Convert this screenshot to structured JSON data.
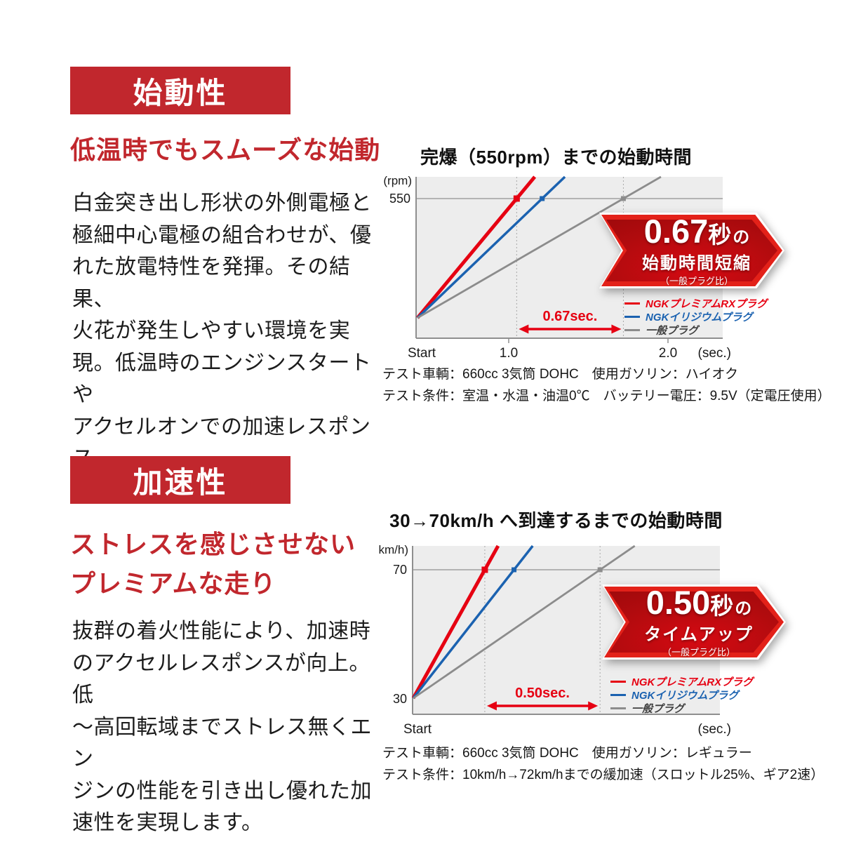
{
  "colors": {
    "brand_red": "#c1272d",
    "accent_red": "#e60012",
    "iridium_blue": "#1b62b0",
    "standard_gray": "#8c8c8c",
    "plot_background": "#ededed"
  },
  "sections": [
    {
      "badge": "始動性",
      "heading": "低温時でもスムーズな始動",
      "body": "白金突き出し形状の外側電極と\n極細中心電極の組合わせが、優\nれた放電特性を発揮。その結果、\n火花が発生しやすい環境を実\n現。低温時のエンジンスタートや\nアクセルオンでの加速レスポンス\nが向上します。",
      "callout": {
        "value": "0.67",
        "suffix_large": "秒",
        "suffix_small": "の",
        "line2": "始動時間短縮",
        "line3": "（一般プラグ比）"
      },
      "test_conditions": "テスト車輌：660cc 3気筒 DOHC　使用ガソリン：ハイオク\nテスト条件：室温・水温・油温0℃　バッテリー電圧：9.5V（定電圧使用）"
    },
    {
      "badge": "加速性",
      "heading": "ストレスを感じさせない\nプレミアムな走り",
      "body": "抜群の着火性能により、加速時\nのアクセルレスポンスが向上。低\n～高回転域までストレス無くエン\nジンの性能を引き出し優れた加\n速性を実現します。",
      "callout": {
        "value": "0.50",
        "suffix_large": "秒",
        "suffix_small": "の",
        "line2": "タイムアップ",
        "line3": "（一般プラグ比）"
      },
      "test_conditions": "テスト車輌：660cc 3気筒 DOHC　使用ガソリン：レギュラー\nテスト条件：10km/h→72km/hまでの緩加速（スロットル25%、ギア2速）"
    }
  ],
  "chart_data": [
    {
      "type": "line",
      "title": "完爆（550rpm）までの始動時間",
      "x_axis": {
        "start_label": "Start",
        "unit_label": "(sec.)",
        "ticks": [
          1.0,
          2.0
        ],
        "tick_labels": [
          "1.0",
          "2.0"
        ],
        "x_unit": "seconds"
      },
      "y_axis": {
        "unit_label": "(rpm)",
        "target_label": "550",
        "target_value": 550,
        "start_label": ""
      },
      "series": [
        {
          "name": "NGKプレミアムRXプラグ",
          "color": "#e60012",
          "label_color": "#e60012",
          "t_cross": 1.05
        },
        {
          "name": "NGKイリジウムプラグ",
          "color": "#1b62b0",
          "label_color": "#1b62b0",
          "t_cross": 1.21
        },
        {
          "name": "一般プラグ",
          "color": "#8c8c8c",
          "label_color": "#3f3f3f",
          "t_cross": 1.72
        }
      ],
      "annotation": {
        "label": "0.67sec.",
        "from_series": 0,
        "to_series": 2,
        "gap_vs_standard_sec": 0.67
      },
      "legend_position": "inside-bottom-right",
      "grid": false
    },
    {
      "type": "line",
      "title": "30→70km/h へ到達するまでの始動時間",
      "x_axis": {
        "start_label": "Start",
        "unit_label": "(sec.)",
        "ticks": [],
        "tick_labels": [],
        "x_unit": "seconds (axis unlabeled, t_cross given as fraction of axis)"
      },
      "y_axis": {
        "unit_label": "(km/h)",
        "target_label": "70",
        "target_value": 70,
        "start_label": "30",
        "start_value": 30
      },
      "series": [
        {
          "name": "NGKプレミアムRXプラグ",
          "color": "#e60012",
          "label_color": "#e60012",
          "t_cross": 0.235
        },
        {
          "name": "NGKイリジウムプラグ",
          "color": "#1b62b0",
          "label_color": "#1b62b0",
          "t_cross": 0.33
        },
        {
          "name": "一般プラグ",
          "color": "#8c8c8c",
          "label_color": "#3f3f3f",
          "t_cross": 0.61
        }
      ],
      "annotation": {
        "label": "0.50sec.",
        "from_series": 0,
        "to_series": 2,
        "gap_vs_standard_sec": 0.5
      },
      "legend_position": "inside-bottom-right",
      "grid": false
    }
  ]
}
